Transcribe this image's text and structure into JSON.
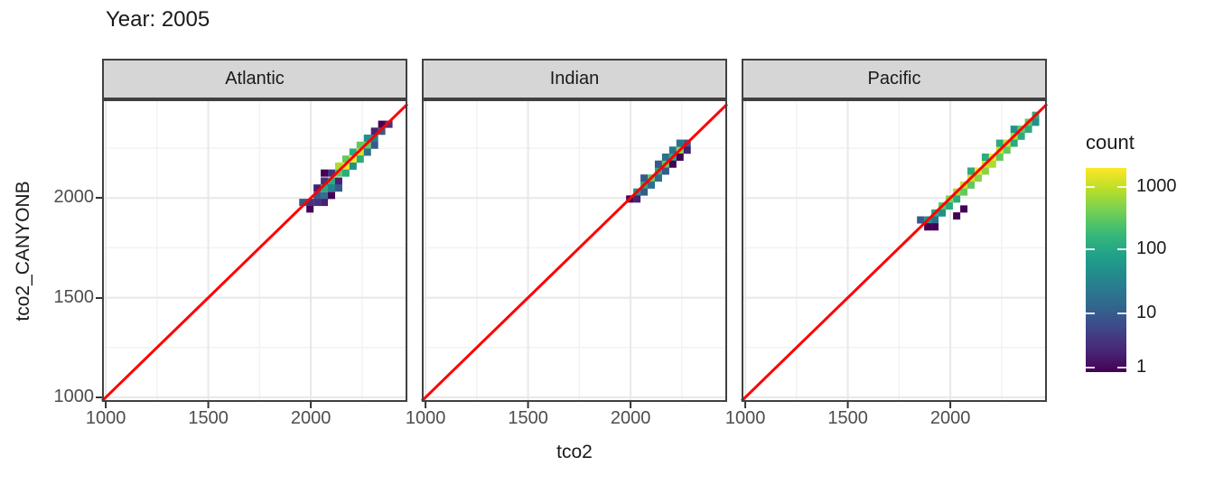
{
  "title": "Year: 2005",
  "x_axis": {
    "label": "tco2",
    "ticks": [
      "1000",
      "1500",
      "2000"
    ]
  },
  "y_axis": {
    "label": "tco2_CANYONB",
    "ticks": [
      "2000",
      "1500",
      "1000"
    ]
  },
  "legend": {
    "title": "count",
    "tick_labels": [
      "1000",
      "100",
      "10",
      "1"
    ]
  },
  "colors": {
    "reference_line": "#ff0000",
    "panel_background": "#ffffff",
    "panel_border": "#404040",
    "grid_major": "#e8e8e8",
    "grid_minor": "#f2f2f2",
    "strip_fill": "#d6d6d6",
    "strip_border": "#404040",
    "axis_text": "#4d4d4d",
    "tick_mark": "#333333",
    "viridis": [
      "#440154",
      "#482878",
      "#3e4989",
      "#31688e",
      "#26828e",
      "#1f9e89",
      "#35b779",
      "#6ece58",
      "#b5de2b",
      "#fde725"
    ]
  },
  "chart_data": {
    "type": "heatmap",
    "subtype": "geom_bin2d_facets",
    "title": "Year: 2005",
    "xlabel": "tco2",
    "ylabel": "tco2_CANYONB",
    "xlim": [
      982,
      2471
    ],
    "ylim": [
      977,
      2495
    ],
    "x_major_ticks": [
      1000,
      1500,
      2000
    ],
    "y_major_ticks": [
      1000,
      1500,
      2000
    ],
    "x_minor_ticks": [
      1250,
      1750,
      2250
    ],
    "y_minor_ticks": [
      1250,
      1750,
      2250
    ],
    "bin_size": 35,
    "grid": true,
    "legend_position": "right",
    "reference_line": {
      "type": "y=x",
      "color": "#ff0000"
    },
    "color_scale": {
      "name": "viridis",
      "title": "count",
      "transform": "log10",
      "domain": [
        1,
        1500
      ],
      "ticks": [
        1,
        10,
        100,
        1000
      ]
    },
    "facets": [
      {
        "label": "Atlantic",
        "bins": [
          [
            1961,
            1978,
            8
          ],
          [
            1996,
            1945,
            1
          ],
          [
            1996,
            1978,
            3
          ],
          [
            2031,
            2050,
            2
          ],
          [
            2031,
            2013,
            8
          ],
          [
            2031,
            1978,
            3
          ],
          [
            2066,
            2125,
            1
          ],
          [
            2066,
            2085,
            3
          ],
          [
            2066,
            2050,
            90
          ],
          [
            2066,
            2013,
            15
          ],
          [
            2066,
            1978,
            2
          ],
          [
            2101,
            2125,
            3
          ],
          [
            2101,
            2085,
            90
          ],
          [
            2101,
            2050,
            25
          ],
          [
            2101,
            2013,
            1
          ],
          [
            2136,
            2160,
            600
          ],
          [
            2136,
            2125,
            250
          ],
          [
            2136,
            2085,
            2
          ],
          [
            2136,
            2050,
            8
          ],
          [
            2171,
            2195,
            250
          ],
          [
            2171,
            2160,
            1500
          ],
          [
            2171,
            2125,
            90
          ],
          [
            2206,
            2230,
            90
          ],
          [
            2206,
            2195,
            1500
          ],
          [
            2206,
            2160,
            40
          ],
          [
            2241,
            2265,
            250
          ],
          [
            2241,
            2230,
            900
          ],
          [
            2241,
            2195,
            90
          ],
          [
            2276,
            2300,
            40
          ],
          [
            2276,
            2265,
            250
          ],
          [
            2276,
            2230,
            15
          ],
          [
            2311,
            2335,
            2
          ],
          [
            2311,
            2300,
            25
          ],
          [
            2311,
            2265,
            8
          ],
          [
            2346,
            2370,
            1
          ],
          [
            2346,
            2335,
            8
          ],
          [
            2381,
            2370,
            3
          ]
        ]
      },
      {
        "label": "Indian",
        "bins": [
          [
            1996,
            1995,
            1
          ],
          [
            2031,
            2030,
            40
          ],
          [
            2031,
            1995,
            2
          ],
          [
            2066,
            2065,
            90
          ],
          [
            2066,
            2030,
            8
          ],
          [
            2066,
            2100,
            8
          ],
          [
            2101,
            2100,
            250
          ],
          [
            2101,
            2065,
            15
          ],
          [
            2136,
            2135,
            90
          ],
          [
            2136,
            2100,
            15
          ],
          [
            2136,
            2170,
            8
          ],
          [
            2171,
            2170,
            250
          ],
          [
            2171,
            2135,
            8
          ],
          [
            2171,
            2205,
            15
          ],
          [
            2206,
            2205,
            90
          ],
          [
            2206,
            2240,
            15
          ],
          [
            2206,
            2170,
            1
          ],
          [
            2241,
            2240,
            400
          ],
          [
            2241,
            2275,
            15
          ],
          [
            2241,
            2205,
            1
          ],
          [
            2276,
            2275,
            8
          ],
          [
            2276,
            2240,
            2
          ]
        ]
      },
      {
        "label": "Pacific",
        "bins": [
          [
            1855,
            1890,
            8
          ],
          [
            1890,
            1890,
            40
          ],
          [
            1890,
            1855,
            1
          ],
          [
            1925,
            1925,
            90
          ],
          [
            1925,
            1890,
            15
          ],
          [
            1925,
            1855,
            1
          ],
          [
            1960,
            1960,
            250
          ],
          [
            1960,
            1925,
            40
          ],
          [
            1995,
            1995,
            400
          ],
          [
            1995,
            1960,
            90
          ],
          [
            2031,
            2030,
            600
          ],
          [
            2031,
            1995,
            90
          ],
          [
            2031,
            1910,
            1
          ],
          [
            2066,
            1945,
            1
          ],
          [
            2066,
            2065,
            900
          ],
          [
            2066,
            2030,
            250
          ],
          [
            2101,
            2100,
            900
          ],
          [
            2101,
            2065,
            250
          ],
          [
            2101,
            2135,
            90
          ],
          [
            2136,
            2135,
            1500
          ],
          [
            2136,
            2100,
            400
          ],
          [
            2171,
            2170,
            900
          ],
          [
            2171,
            2135,
            400
          ],
          [
            2171,
            2205,
            90
          ],
          [
            2206,
            2205,
            1500
          ],
          [
            2206,
            2170,
            600
          ],
          [
            2241,
            2240,
            900
          ],
          [
            2241,
            2205,
            250
          ],
          [
            2241,
            2275,
            90
          ],
          [
            2276,
            2275,
            900
          ],
          [
            2276,
            2240,
            250
          ],
          [
            2311,
            2310,
            600
          ],
          [
            2311,
            2275,
            90
          ],
          [
            2311,
            2345,
            40
          ],
          [
            2346,
            2345,
            250
          ],
          [
            2346,
            2310,
            90
          ],
          [
            2381,
            2380,
            250
          ],
          [
            2381,
            2345,
            90
          ],
          [
            2416,
            2415,
            90
          ],
          [
            2416,
            2380,
            40
          ]
        ]
      }
    ]
  }
}
